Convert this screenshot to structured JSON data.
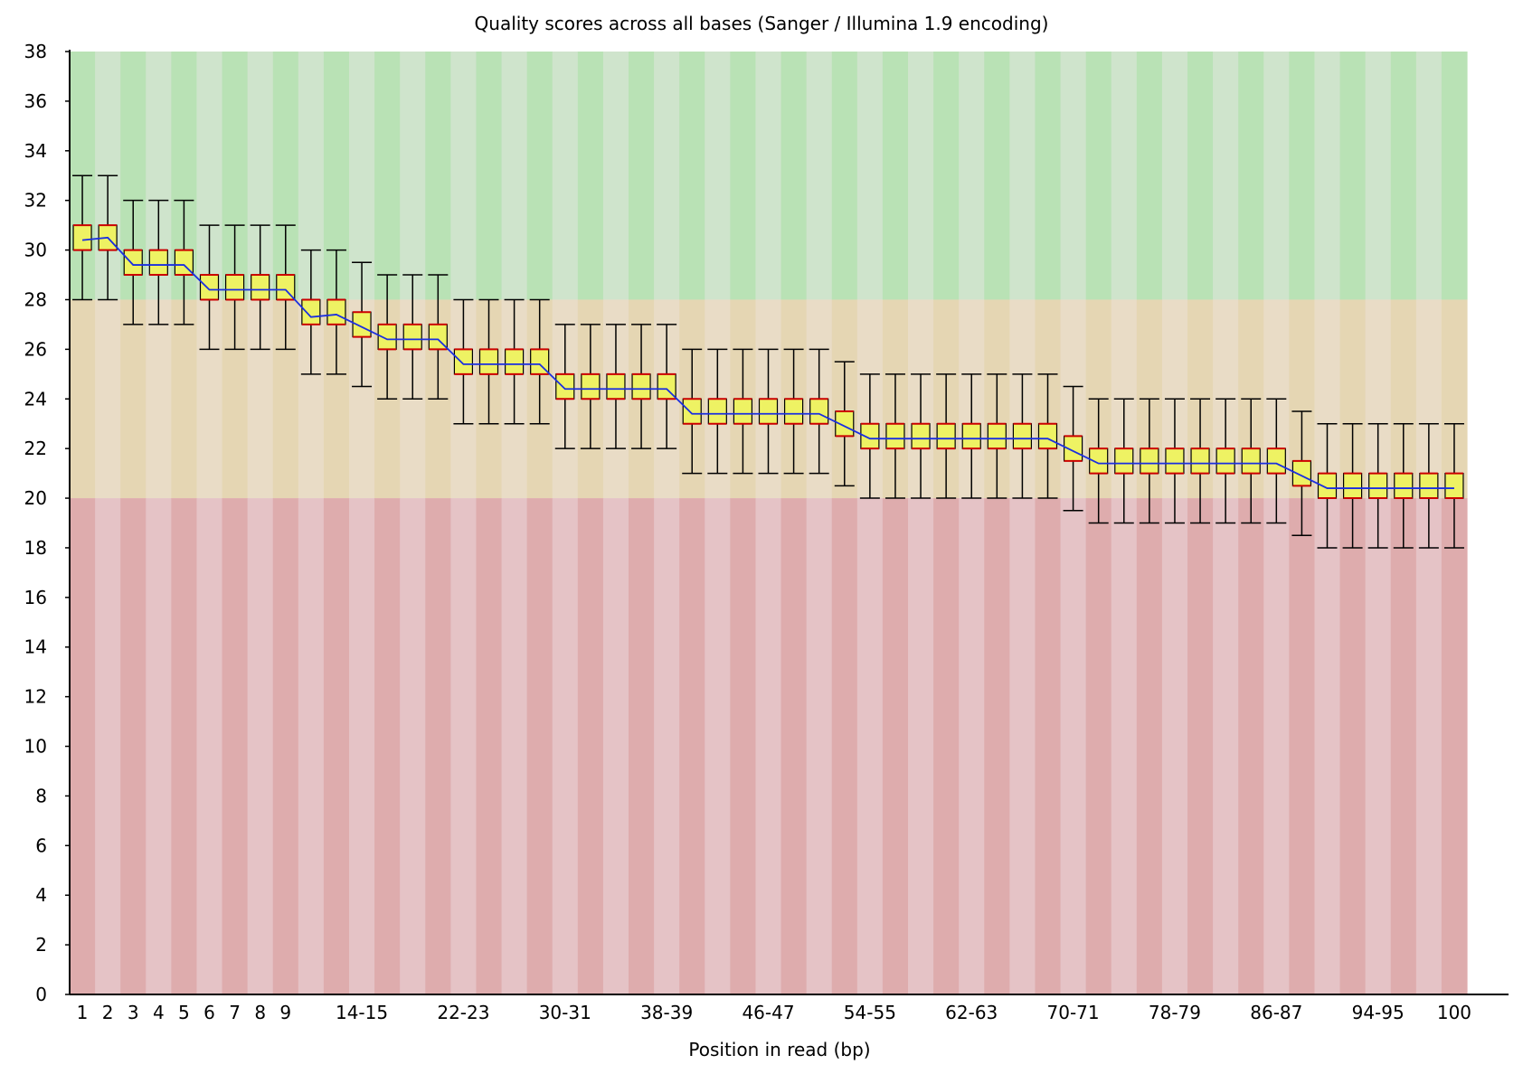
{
  "chart_data": {
    "type": "box",
    "title": "Quality scores across all bases (Sanger / Illumina 1.9 encoding)",
    "xlabel": "Position in read (bp)",
    "ylabel": "",
    "ylim": [
      0,
      38
    ],
    "yticks": [
      0,
      2,
      4,
      6,
      8,
      10,
      12,
      14,
      16,
      18,
      20,
      22,
      24,
      26,
      28,
      30,
      32,
      34,
      36,
      38
    ],
    "grid": false,
    "legend": "none",
    "quality_zones": [
      {
        "zone": "good",
        "from": 28,
        "to": 38,
        "colors": [
          "#b9e2b5",
          "#cfe4cc"
        ]
      },
      {
        "zone": "reasonable",
        "from": 20,
        "to": 28,
        "colors": [
          "#e5d6b3",
          "#e9dcc6"
        ]
      },
      {
        "zone": "poor",
        "from": 0,
        "to": 20,
        "colors": [
          "#deacad",
          "#e5c3c6"
        ]
      }
    ],
    "colors": {
      "box_fill": "#eef263",
      "box_edge": "#cc0000",
      "median": "#cc0000",
      "mean_line": "#1a2ee0",
      "whisker": "#000000",
      "axis": "#000000"
    },
    "categories": [
      "1",
      "2",
      "3",
      "4",
      "5",
      "6",
      "7",
      "8",
      "9",
      "10-11",
      "12-13",
      "14-15",
      "16-17",
      "18-19",
      "20-21",
      "22-23",
      "24-25",
      "26-27",
      "28-29",
      "30-31",
      "32-33",
      "34-35",
      "36-37",
      "38-39",
      "40-41",
      "42-43",
      "44-45",
      "46-47",
      "48-49",
      "50-51",
      "52-53",
      "54-55",
      "56-57",
      "58-59",
      "60-61",
      "62-63",
      "64-65",
      "66-67",
      "68-69",
      "70-71",
      "72-73",
      "74-75",
      "76-77",
      "78-79",
      "80-81",
      "82-83",
      "84-85",
      "86-87",
      "88-89",
      "90-91",
      "92-93",
      "94-95",
      "96-97",
      "98-99",
      "100"
    ],
    "tick_labels_shown": [
      "1",
      "2",
      "3",
      "4",
      "5",
      "6",
      "7",
      "8",
      "9",
      "14-15",
      "22-23",
      "30-31",
      "38-39",
      "46-47",
      "54-55",
      "62-63",
      "70-71",
      "78-79",
      "86-87",
      "94-95",
      "100"
    ],
    "lower_whisker": [
      28,
      28,
      27,
      27,
      27,
      26,
      26,
      26,
      26,
      25,
      25,
      24.5,
      24,
      24,
      24,
      23,
      23,
      23,
      23,
      22,
      22,
      22,
      22,
      22,
      21,
      21,
      21,
      21,
      21,
      21,
      20.5,
      20,
      20,
      20,
      20,
      20,
      20,
      20,
      20,
      19.5,
      19,
      19,
      19,
      19,
      19,
      19,
      19,
      19,
      18.5,
      18,
      18,
      18,
      18,
      18,
      18
    ],
    "q1": [
      30,
      30,
      29,
      29,
      29,
      28,
      28,
      28,
      28,
      27,
      27,
      26.5,
      26,
      26,
      26,
      25,
      25,
      25,
      25,
      24,
      24,
      24,
      24,
      24,
      23,
      23,
      23,
      23,
      23,
      23,
      22.5,
      22,
      22,
      22,
      22,
      22,
      22,
      22,
      22,
      21.5,
      21,
      21,
      21,
      21,
      21,
      21,
      21,
      21,
      20.5,
      20,
      20,
      20,
      20,
      20,
      20
    ],
    "median": [
      31,
      31,
      30,
      30,
      30,
      29,
      29,
      29,
      29,
      28,
      28,
      27.5,
      27,
      27,
      27,
      26,
      26,
      26,
      26,
      25,
      25,
      25,
      25,
      25,
      24,
      24,
      24,
      24,
      24,
      24,
      23.5,
      23,
      23,
      23,
      23,
      23,
      23,
      23,
      23,
      22.5,
      22,
      22,
      22,
      22,
      22,
      22,
      22,
      22,
      21.5,
      21,
      21,
      21,
      21,
      21,
      21
    ],
    "q3": [
      31,
      31,
      30,
      30,
      30,
      29,
      29,
      29,
      29,
      28,
      28,
      27.5,
      27,
      27,
      27,
      26,
      26,
      26,
      26,
      25,
      25,
      25,
      25,
      25,
      24,
      24,
      24,
      24,
      24,
      24,
      23.5,
      23,
      23,
      23,
      23,
      23,
      23,
      23,
      23,
      22.5,
      22,
      22,
      22,
      22,
      22,
      22,
      22,
      22,
      21.5,
      21,
      21,
      21,
      21,
      21,
      21
    ],
    "upper_whisker": [
      33,
      33,
      32,
      32,
      32,
      31,
      31,
      31,
      31,
      30,
      30,
      29.5,
      29,
      29,
      29,
      28,
      28,
      28,
      28,
      27,
      27,
      27,
      27,
      27,
      26,
      26,
      26,
      26,
      26,
      26,
      25.5,
      25,
      25,
      25,
      25,
      25,
      25,
      25,
      25,
      24.5,
      24,
      24,
      24,
      24,
      24,
      24,
      24,
      24,
      23.5,
      23,
      23,
      23,
      23,
      23,
      23
    ],
    "mean": [
      30.4,
      30.5,
      29.4,
      29.4,
      29.4,
      28.4,
      28.4,
      28.4,
      28.4,
      27.3,
      27.4,
      26.9,
      26.4,
      26.4,
      26.4,
      25.4,
      25.4,
      25.4,
      25.4,
      24.4,
      24.4,
      24.4,
      24.4,
      24.4,
      23.4,
      23.4,
      23.4,
      23.4,
      23.4,
      23.4,
      22.9,
      22.4,
      22.4,
      22.4,
      22.4,
      22.4,
      22.4,
      22.4,
      22.4,
      21.9,
      21.4,
      21.4,
      21.4,
      21.4,
      21.4,
      21.4,
      21.4,
      21.4,
      20.9,
      20.4,
      20.4,
      20.4,
      20.4,
      20.4,
      20.4
    ]
  }
}
